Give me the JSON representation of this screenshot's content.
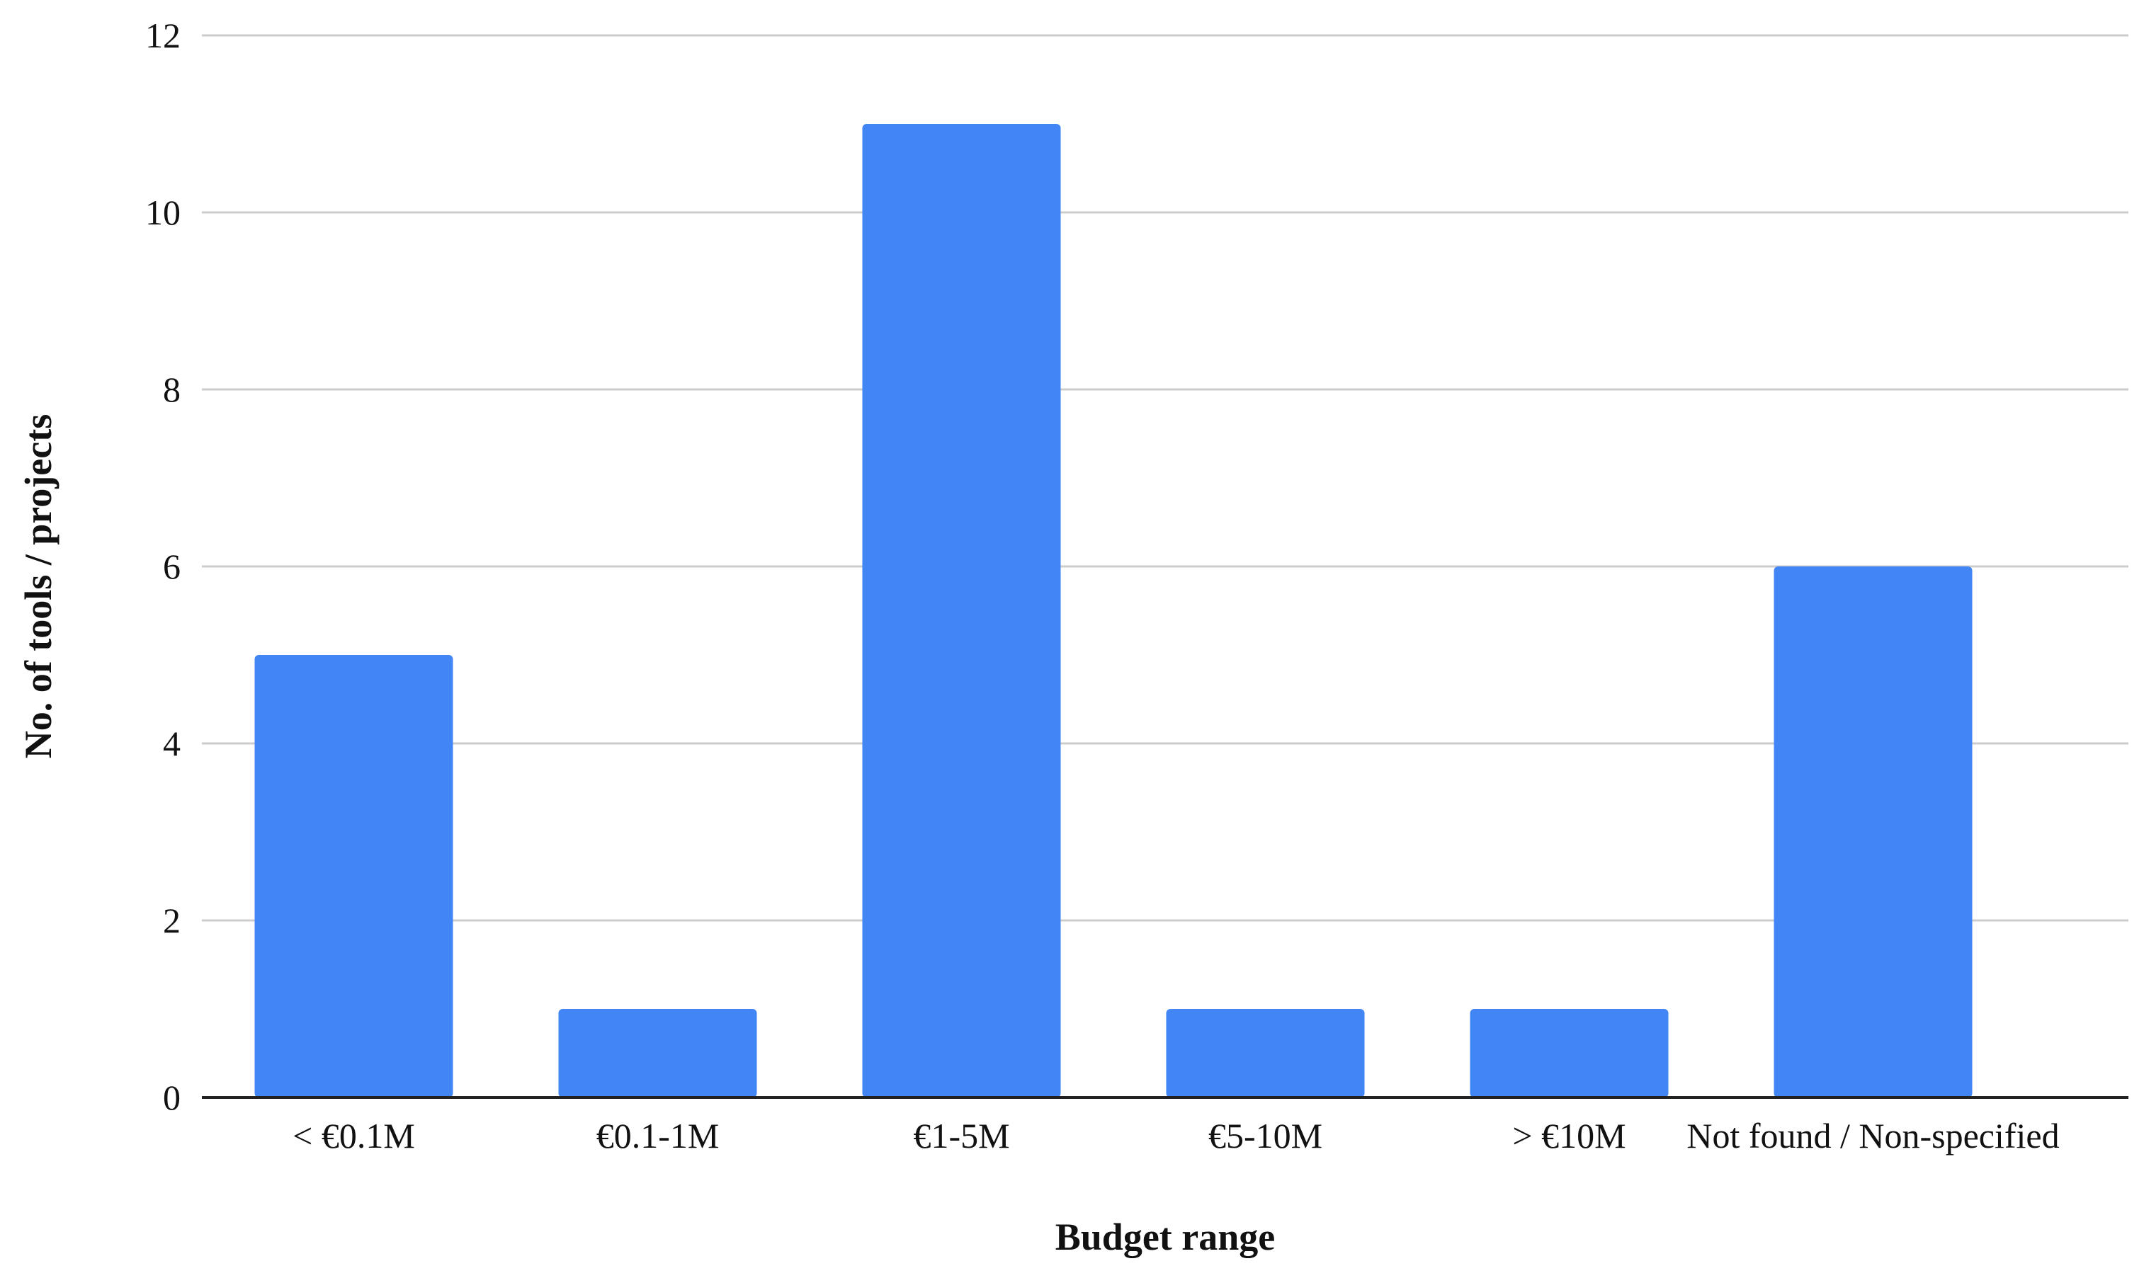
{
  "chart_data": {
    "type": "bar",
    "title": "",
    "xlabel": "Budget range",
    "ylabel": "No. of tools / projects",
    "categories": [
      "< €0.1M",
      "€0.1-1M",
      "€1-5M",
      "€5-10M",
      "> €10M",
      "Not found / Non-specified"
    ],
    "values": [
      5,
      1,
      11,
      1,
      1,
      6
    ],
    "ylim": [
      0,
      12
    ],
    "yticks": [
      "0",
      "2",
      "4",
      "6",
      "8",
      "10",
      "12"
    ],
    "grid": true,
    "legend": "none",
    "bar_color": "#4285f4"
  }
}
